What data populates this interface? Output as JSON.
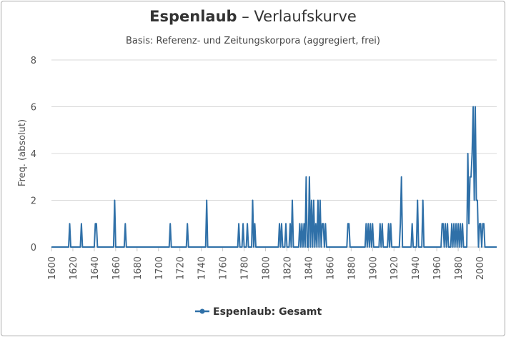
{
  "chart_data": {
    "type": "line",
    "title_word": "Espenlaub",
    "title_rest": " – Verlaufskurve",
    "subtitle": "Basis: Referenz- und Zeitungskorpora (aggregiert, frei)",
    "ylabel": "Freq. (absolut)",
    "xlabel": "",
    "xlim": [
      1600,
      2016
    ],
    "ylim": [
      0,
      8
    ],
    "x_ticks": [
      1600,
      1620,
      1640,
      1660,
      1680,
      1700,
      1720,
      1740,
      1760,
      1780,
      1800,
      1820,
      1840,
      1860,
      1880,
      1900,
      1920,
      1940,
      1960,
      1980,
      2000
    ],
    "y_ticks": [
      0,
      2,
      4,
      6,
      8
    ],
    "grid": true,
    "legend_position": "bottom",
    "series_color": "#2f70a8",
    "series": [
      {
        "name": "Espenlaub: Gesamt",
        "points": [
          [
            1600,
            0
          ],
          [
            1616,
            0
          ],
          [
            1617,
            1
          ],
          [
            1618,
            0
          ],
          [
            1627,
            0
          ],
          [
            1628,
            1
          ],
          [
            1629,
            0
          ],
          [
            1640,
            0
          ],
          [
            1641,
            1
          ],
          [
            1642,
            1
          ],
          [
            1643,
            0
          ],
          [
            1658,
            0
          ],
          [
            1659,
            2
          ],
          [
            1660,
            0
          ],
          [
            1668,
            0
          ],
          [
            1669,
            1
          ],
          [
            1670,
            0
          ],
          [
            1710,
            0
          ],
          [
            1711,
            1
          ],
          [
            1712,
            0
          ],
          [
            1726,
            0
          ],
          [
            1727,
            1
          ],
          [
            1728,
            0
          ],
          [
            1744,
            0
          ],
          [
            1745,
            2
          ],
          [
            1746,
            0
          ],
          [
            1774,
            0
          ],
          [
            1775,
            1
          ],
          [
            1776,
            0
          ],
          [
            1778,
            0
          ],
          [
            1779,
            1
          ],
          [
            1780,
            0
          ],
          [
            1782,
            0
          ],
          [
            1783,
            1
          ],
          [
            1784,
            0
          ],
          [
            1787,
            0
          ],
          [
            1788,
            2
          ],
          [
            1789,
            0
          ],
          [
            1790,
            1
          ],
          [
            1791,
            0
          ],
          [
            1812,
            0
          ],
          [
            1813,
            1
          ],
          [
            1814,
            0
          ],
          [
            1815,
            1
          ],
          [
            1816,
            0
          ],
          [
            1818,
            0
          ],
          [
            1819,
            1
          ],
          [
            1820,
            0
          ],
          [
            1822,
            0
          ],
          [
            1823,
            1
          ],
          [
            1824,
            0
          ],
          [
            1825,
            2
          ],
          [
            1826,
            0
          ],
          [
            1831,
            0
          ],
          [
            1832,
            1
          ],
          [
            1833,
            0
          ],
          [
            1834,
            1
          ],
          [
            1835,
            0
          ],
          [
            1836,
            1
          ],
          [
            1837,
            0
          ],
          [
            1838,
            3
          ],
          [
            1839,
            0
          ],
          [
            1840,
            0
          ],
          [
            1841,
            3
          ],
          [
            1842,
            0
          ],
          [
            1843,
            2
          ],
          [
            1844,
            0
          ],
          [
            1845,
            2
          ],
          [
            1846,
            0
          ],
          [
            1847,
            1
          ],
          [
            1848,
            0
          ],
          [
            1849,
            2
          ],
          [
            1850,
            0
          ],
          [
            1851,
            2
          ],
          [
            1852,
            0
          ],
          [
            1853,
            1
          ],
          [
            1854,
            1
          ],
          [
            1855,
            0
          ],
          [
            1856,
            1
          ],
          [
            1857,
            0
          ],
          [
            1876,
            0
          ],
          [
            1877,
            1
          ],
          [
            1878,
            1
          ],
          [
            1879,
            0
          ],
          [
            1893,
            0
          ],
          [
            1894,
            1
          ],
          [
            1895,
            0
          ],
          [
            1896,
            1
          ],
          [
            1897,
            0
          ],
          [
            1898,
            1
          ],
          [
            1899,
            0
          ],
          [
            1900,
            1
          ],
          [
            1901,
            0
          ],
          [
            1906,
            0
          ],
          [
            1907,
            1
          ],
          [
            1908,
            0
          ],
          [
            1909,
            1
          ],
          [
            1910,
            0
          ],
          [
            1914,
            0
          ],
          [
            1915,
            1
          ],
          [
            1916,
            0
          ],
          [
            1917,
            1
          ],
          [
            1918,
            0
          ],
          [
            1925,
            0
          ],
          [
            1926,
            1
          ],
          [
            1927,
            3
          ],
          [
            1928,
            0
          ],
          [
            1936,
            0
          ],
          [
            1937,
            1
          ],
          [
            1938,
            0
          ],
          [
            1941,
            0
          ],
          [
            1942,
            2
          ],
          [
            1943,
            0
          ],
          [
            1946,
            0
          ],
          [
            1947,
            2
          ],
          [
            1948,
            0
          ],
          [
            1964,
            0
          ],
          [
            1965,
            1
          ],
          [
            1966,
            1
          ],
          [
            1967,
            0
          ],
          [
            1968,
            1
          ],
          [
            1969,
            0
          ],
          [
            1970,
            1
          ],
          [
            1971,
            0
          ],
          [
            1973,
            0
          ],
          [
            1974,
            1
          ],
          [
            1975,
            0
          ],
          [
            1976,
            1
          ],
          [
            1977,
            0
          ],
          [
            1978,
            1
          ],
          [
            1979,
            0
          ],
          [
            1980,
            1
          ],
          [
            1981,
            0
          ],
          [
            1982,
            1
          ],
          [
            1983,
            0
          ],
          [
            1984,
            1
          ],
          [
            1985,
            0
          ],
          [
            1988,
            0
          ],
          [
            1989,
            4
          ],
          [
            1990,
            1
          ],
          [
            1991,
            3
          ],
          [
            1992,
            3
          ],
          [
            1993,
            4
          ],
          [
            1994,
            6
          ],
          [
            1995,
            2
          ],
          [
            1996,
            6
          ],
          [
            1997,
            2
          ],
          [
            1998,
            2
          ],
          [
            1999,
            0
          ],
          [
            2000,
            1
          ],
          [
            2001,
            1
          ],
          [
            2002,
            0
          ],
          [
            2003,
            1
          ],
          [
            2004,
            1
          ],
          [
            2005,
            0
          ],
          [
            2016,
            0
          ]
        ]
      }
    ]
  }
}
